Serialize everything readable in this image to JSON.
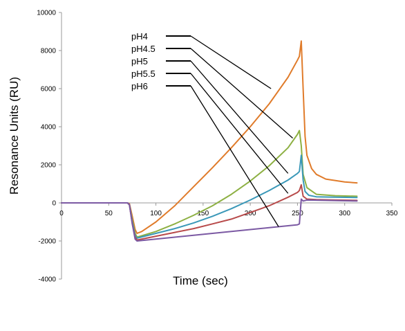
{
  "chart_data": {
    "type": "line",
    "title": "",
    "xlabel": "Time (sec)",
    "ylabel": "Resonance Units (RU)",
    "xlim": [
      0,
      350
    ],
    "ylim": [
      -4000,
      10000
    ],
    "xticks": [
      0,
      50,
      100,
      150,
      200,
      250,
      300,
      350
    ],
    "yticks": [
      -4000,
      -2000,
      0,
      2000,
      4000,
      6000,
      8000,
      10000
    ],
    "grid": false,
    "legend_placement": "top-left, callout lines pointing to curves",
    "series": [
      {
        "name": "pH4",
        "color": "#E07B2A",
        "points": [
          [
            0,
            0
          ],
          [
            70,
            0
          ],
          [
            72,
            -50
          ],
          [
            75,
            -700
          ],
          [
            78,
            -1400
          ],
          [
            80,
            -1600
          ],
          [
            85,
            -1500
          ],
          [
            100,
            -1000
          ],
          [
            120,
            -150
          ],
          [
            140,
            850
          ],
          [
            160,
            1850
          ],
          [
            180,
            2900
          ],
          [
            200,
            4000
          ],
          [
            220,
            5200
          ],
          [
            240,
            6600
          ],
          [
            250,
            7500
          ],
          [
            252,
            7700
          ],
          [
            254,
            8500
          ],
          [
            256,
            6000
          ],
          [
            258,
            3500
          ],
          [
            260,
            2500
          ],
          [
            265,
            1800
          ],
          [
            270,
            1500
          ],
          [
            280,
            1250
          ],
          [
            300,
            1100
          ],
          [
            313,
            1050
          ]
        ]
      },
      {
        "name": "pH4.5",
        "color": "#8DB043",
        "points": [
          [
            0,
            0
          ],
          [
            70,
            0
          ],
          [
            72,
            -100
          ],
          [
            75,
            -900
          ],
          [
            78,
            -1600
          ],
          [
            80,
            -1800
          ],
          [
            100,
            -1500
          ],
          [
            120,
            -1100
          ],
          [
            140,
            -650
          ],
          [
            160,
            -150
          ],
          [
            180,
            450
          ],
          [
            200,
            1150
          ],
          [
            220,
            1950
          ],
          [
            240,
            2900
          ],
          [
            250,
            3600
          ],
          [
            252,
            3800
          ],
          [
            254,
            3000
          ],
          [
            256,
            1500
          ],
          [
            260,
            800
          ],
          [
            270,
            450
          ],
          [
            290,
            380
          ],
          [
            313,
            350
          ]
        ]
      },
      {
        "name": "pH5",
        "color": "#3A98B8",
        "points": [
          [
            0,
            0
          ],
          [
            70,
            0
          ],
          [
            72,
            -100
          ],
          [
            75,
            -1000
          ],
          [
            78,
            -1700
          ],
          [
            80,
            -1850
          ],
          [
            100,
            -1600
          ],
          [
            120,
            -1350
          ],
          [
            140,
            -1050
          ],
          [
            160,
            -700
          ],
          [
            180,
            -300
          ],
          [
            200,
            150
          ],
          [
            220,
            650
          ],
          [
            240,
            1200
          ],
          [
            250,
            1550
          ],
          [
            252,
            1650
          ],
          [
            254,
            2500
          ],
          [
            256,
            1200
          ],
          [
            258,
            600
          ],
          [
            262,
            400
          ],
          [
            270,
            320
          ],
          [
            290,
            300
          ],
          [
            313,
            280
          ]
        ]
      },
      {
        "name": "pH5.5",
        "color": "#B84A4A",
        "points": [
          [
            0,
            0
          ],
          [
            70,
            0
          ],
          [
            72,
            -100
          ],
          [
            75,
            -1100
          ],
          [
            78,
            -1800
          ],
          [
            80,
            -1950
          ],
          [
            100,
            -1750
          ],
          [
            120,
            -1550
          ],
          [
            140,
            -1350
          ],
          [
            160,
            -1100
          ],
          [
            180,
            -850
          ],
          [
            200,
            -500
          ],
          [
            220,
            -150
          ],
          [
            240,
            300
          ],
          [
            250,
            550
          ],
          [
            252,
            650
          ],
          [
            254,
            950
          ],
          [
            256,
            350
          ],
          [
            260,
            200
          ],
          [
            270,
            170
          ],
          [
            290,
            150
          ],
          [
            313,
            130
          ]
        ]
      },
      {
        "name": "pH6",
        "color": "#7B59A3",
        "points": [
          [
            0,
            0
          ],
          [
            70,
            0
          ],
          [
            72,
            -100
          ],
          [
            75,
            -1100
          ],
          [
            78,
            -1900
          ],
          [
            80,
            -2000
          ],
          [
            100,
            -1900
          ],
          [
            120,
            -1800
          ],
          [
            140,
            -1700
          ],
          [
            160,
            -1600
          ],
          [
            180,
            -1500
          ],
          [
            200,
            -1400
          ],
          [
            220,
            -1300
          ],
          [
            240,
            -1200
          ],
          [
            250,
            -1150
          ],
          [
            252,
            -1100
          ],
          [
            254,
            200
          ],
          [
            256,
            100
          ],
          [
            260,
            150
          ],
          [
            280,
            130
          ],
          [
            313,
            100
          ]
        ]
      }
    ]
  }
}
